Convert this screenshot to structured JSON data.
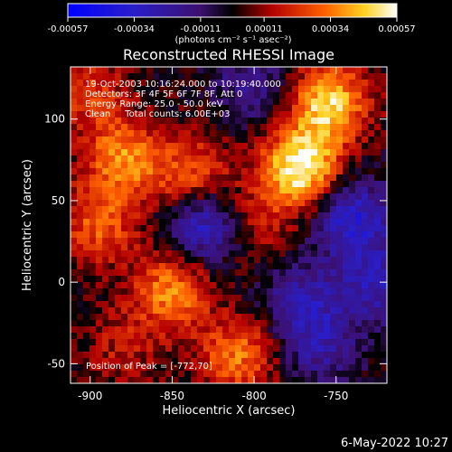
{
  "chart_data": {
    "type": "heatmap",
    "title": "Reconstructed RHESSI Image",
    "xlabel": "Heliocentric X (arcsec)",
    "ylabel": "Heliocentric Y (arcsec)",
    "xlim": [
      -912,
      -719
    ],
    "ylim": [
      -62,
      132
    ],
    "x_ticks": [
      {
        "value": -900,
        "label": "-900"
      },
      {
        "value": -850,
        "label": "-850"
      },
      {
        "value": -800,
        "label": "-800"
      },
      {
        "value": -750,
        "label": "-750"
      }
    ],
    "y_ticks": [
      {
        "value": -50,
        "label": "-50"
      },
      {
        "value": 0,
        "label": "0"
      },
      {
        "value": 50,
        "label": "50"
      },
      {
        "value": 100,
        "label": "100"
      }
    ],
    "colorbar": {
      "min": -0.00057,
      "max": 0.00057,
      "unit_label": "(photons cm⁻² s⁻¹ asec⁻²)",
      "ticks": [
        {
          "value": -0.00057,
          "label": "-0.00057"
        },
        {
          "value": -0.00034,
          "label": "-0.00034"
        },
        {
          "value": -0.00011,
          "label": "-0.00011"
        },
        {
          "value": 0.00011,
          "label": "0.00011"
        },
        {
          "value": 0.00034,
          "label": "0.00034"
        },
        {
          "value": 0.00057,
          "label": "0.00057"
        }
      ]
    },
    "info_lines": [
      "19-Oct-2003 10:16:24.000 to 10:19:40.000",
      "Detectors: 3F 4F 5F 6F 7F 8F, Att 0",
      "Energy Range: 25.0 - 50.0 keV",
      "Clean     Total counts: 6.00E+03"
    ],
    "peak_text": "Position of Peak = [-772,70]",
    "peak": {
      "x": -772,
      "y": 70
    },
    "sources": [
      {
        "x": -772,
        "y": 70,
        "value": 0.00057
      },
      {
        "x": -755,
        "y": 110,
        "value": 0.00048
      },
      {
        "x": -880,
        "y": 75,
        "value": 0.00035
      },
      {
        "x": -838,
        "y": 65,
        "value": 0.0003
      },
      {
        "x": -850,
        "y": -5,
        "value": 0.00036
      },
      {
        "x": -895,
        "y": 35,
        "value": 0.00028
      },
      {
        "x": -810,
        "y": -45,
        "value": 0.00032
      },
      {
        "x": -900,
        "y": 115,
        "value": 0.00022
      },
      {
        "x": -800,
        "y": 35,
        "value": 0.00018
      },
      {
        "x": -880,
        "y": -40,
        "value": 0.00015
      }
    ],
    "negative_regions": [
      {
        "x": -830,
        "y": 35,
        "value": -0.00038
      },
      {
        "x": -740,
        "y": 40,
        "value": -0.00036
      },
      {
        "x": -770,
        "y": -10,
        "value": -0.00024
      },
      {
        "x": -760,
        "y": -40,
        "value": -0.00022
      },
      {
        "x": -800,
        "y": 120,
        "value": -0.0002
      },
      {
        "x": -725,
        "y": 0,
        "value": -0.00028
      }
    ]
  },
  "footer": {
    "date": "6-May-2022 10:27"
  }
}
